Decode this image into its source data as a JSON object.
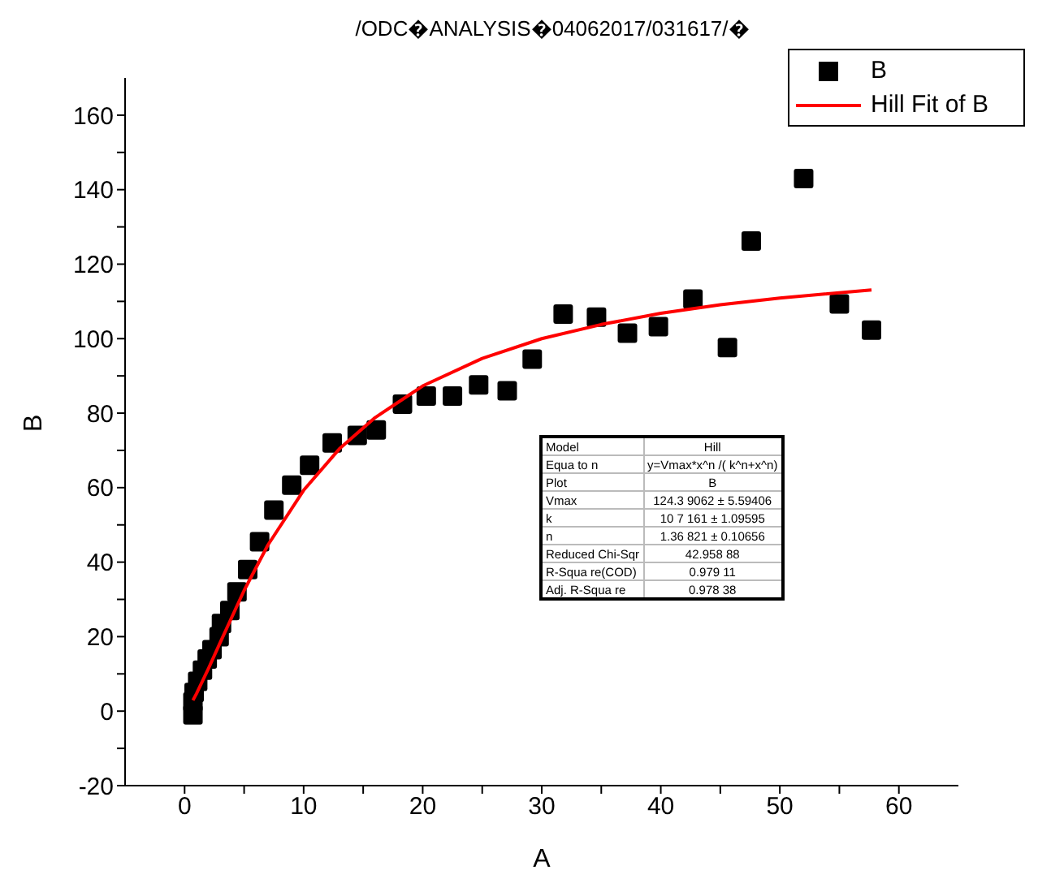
{
  "chart_data": {
    "type": "scatter",
    "title": "/ODC�ANALYSIS�04062017/031617/�",
    "xlabel": "A",
    "ylabel": "B",
    "xlim": [
      -5,
      65
    ],
    "xticks": [
      0,
      {
        "value": 5,
        "label": null
      },
      10,
      {
        "value": 15,
        "label": null
      },
      20,
      {
        "value": 25,
        "label": null
      },
      30,
      {
        "value": 35,
        "label": null
      },
      40,
      {
        "value": 45,
        "label": null
      },
      50,
      {
        "value": 55,
        "label": null
      },
      60
    ],
    "ylim": [
      -20,
      170
    ],
    "yticks": [
      -20,
      {
        "value": -10,
        "label": null
      },
      0,
      {
        "value": 10,
        "label": null
      },
      20,
      {
        "value": 30,
        "label": null
      },
      40,
      {
        "value": 50,
        "label": null
      },
      60,
      {
        "value": 70,
        "label": null
      },
      80,
      {
        "value": 90,
        "label": null
      },
      100,
      {
        "value": 110,
        "label": null
      },
      120,
      {
        "value": 130,
        "label": null
      },
      140,
      {
        "value": 150,
        "label": null
      },
      160
    ],
    "legend": "top right",
    "grid": false,
    "series": [
      {
        "name": "B",
        "marker": "square",
        "color": "#000000",
        "x": [
          0.7,
          0.7,
          0.8,
          1.1,
          1.5,
          1.9,
          2.3,
          2.9,
          3.1,
          3.8,
          4.4,
          5.3,
          6.3,
          7.5,
          9,
          10.5,
          12.4,
          14.5,
          16.1,
          18.3,
          20.3,
          22.5,
          24.7,
          27.1,
          29.2,
          31.8,
          34.6,
          37.2,
          39.8,
          42.7,
          45.6,
          47.6,
          52,
          55,
          57.7
        ],
        "values": [
          -1,
          2.5,
          5,
          8,
          11,
          14,
          16.5,
          20,
          23.5,
          27,
          32,
          38,
          45.5,
          54,
          60.7,
          66,
          72,
          74,
          75.5,
          82.4,
          84.6,
          84.6,
          87.6,
          86,
          94.5,
          106.6,
          105.8,
          101.5,
          103.2,
          110.6,
          97.6,
          126.2,
          143,
          109.3,
          102.3
        ]
      },
      {
        "name": "Hill Fit of B",
        "type": "line",
        "marker": "none",
        "color": "#ff0000",
        "x": [
          0.7,
          1,
          2,
          3,
          5,
          7,
          10,
          13,
          16,
          20,
          25,
          30,
          35,
          40,
          45,
          50,
          57.7
        ],
        "values": [
          2.9,
          4.7,
          11.4,
          18.5,
          32.4,
          44.6,
          59.3,
          70.4,
          78.8,
          87.3,
          94.7,
          100,
          103.8,
          106.8,
          109.1,
          110.9,
          113.1
        ]
      }
    ],
    "annotations": [
      "Model",
      "Hill",
      "Equa to n",
      "y=Vmax*x^n /( k^n+x^n)",
      "Plot",
      "B",
      "Vmax",
      "124.3 9062 ± 5.59406",
      "k",
      "10 7 161 ± 1.09595",
      "n",
      "1.36 821 ± 0.10656",
      "Reduced Chi-Sqr",
      "42.958 88",
      "R-Squa re(COD)",
      "0.979 11",
      "Adj. R-Squa re",
      "0.978 38"
    ]
  }
}
